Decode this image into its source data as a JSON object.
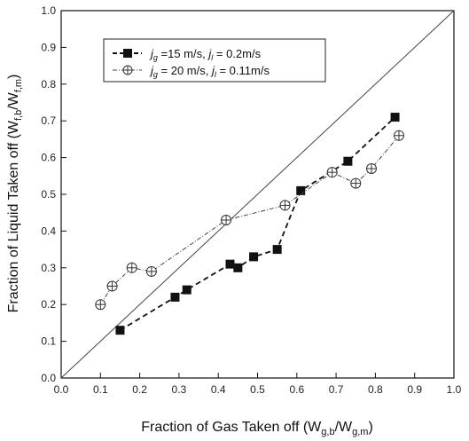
{
  "chart_data": {
    "type": "line",
    "xlabel": "Fraction of Gas Taken off (W",
    "xlabel_sub1": "g,b",
    "xlabel_mid": "/W",
    "xlabel_sub2": "g,m",
    "xlabel_end": ")",
    "ylabel": "Fraction of Liquid Taken off (W",
    "ylabel_sub1": "f,b",
    "ylabel_mid": "/W",
    "ylabel_sub2": "f,m",
    "ylabel_end": ")",
    "xlim": [
      0.0,
      1.0
    ],
    "ylim": [
      0.0,
      1.0
    ],
    "xticks": [
      "0.0",
      "0.1",
      "0.2",
      "0.3",
      "0.4",
      "0.5",
      "0.6",
      "0.7",
      "0.8",
      "0.9",
      "1.0"
    ],
    "yticks": [
      "0.0",
      "0.1",
      "0.2",
      "0.3",
      "0.4",
      "0.5",
      "0.6",
      "0.7",
      "0.8",
      "0.9",
      "1.0"
    ],
    "reference_line": {
      "x": [
        0.0,
        1.0
      ],
      "y": [
        0.0,
        1.0
      ]
    },
    "legend_position": "top-left",
    "series": [
      {
        "name": "jg =15 m/s, jl = 0.2m/s",
        "legend_parts": [
          "j",
          "g",
          " =15 m/s, ",
          "j",
          "l",
          " = 0.2m/s"
        ],
        "marker": "filled-square",
        "line": "dashed",
        "x": [
          0.15,
          0.29,
          0.32,
          0.43,
          0.45,
          0.49,
          0.55,
          0.61,
          0.73,
          0.85
        ],
        "y": [
          0.13,
          0.22,
          0.24,
          0.31,
          0.3,
          0.33,
          0.35,
          0.51,
          0.59,
          0.71
        ]
      },
      {
        "name": "jg = 20 m/s, jl = 0.11m/s",
        "legend_parts": [
          "j",
          "g",
          " = 20 m/s, ",
          "j",
          "l",
          " = 0.11m/s"
        ],
        "marker": "open-circle-cross",
        "line": "dash-dot",
        "x": [
          0.1,
          0.13,
          0.18,
          0.23,
          0.42,
          0.57,
          0.69,
          0.75,
          0.79,
          0.86
        ],
        "y": [
          0.2,
          0.25,
          0.3,
          0.29,
          0.43,
          0.47,
          0.56,
          0.53,
          0.57,
          0.66
        ]
      }
    ]
  }
}
